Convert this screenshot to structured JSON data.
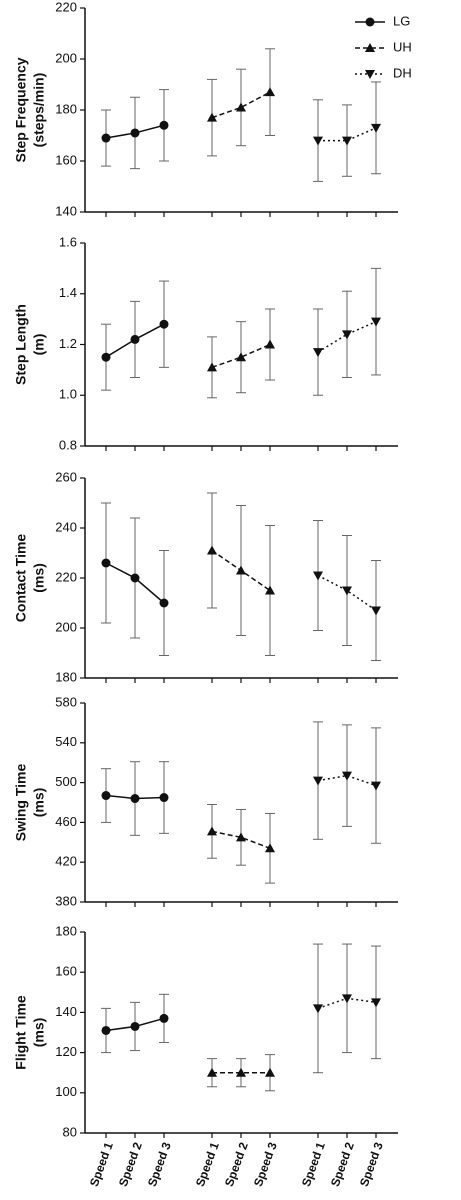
{
  "chart_data": [
    {
      "type": "line",
      "ylabel": [
        "Step Frequency",
        "(steps/min)"
      ],
      "ylim": [
        140,
        220
      ],
      "yticks": [
        140,
        160,
        180,
        200,
        220
      ],
      "legend": "upper right",
      "series": [
        {
          "name": "LG",
          "color": "#111111",
          "dash": "solid",
          "marker": "circle",
          "values": [
            169,
            171,
            174,
            null,
            null,
            null,
            null,
            null,
            null
          ],
          "errors": [
            11,
            14,
            14,
            null,
            null,
            null,
            null,
            null,
            null
          ]
        },
        {
          "name": "UH",
          "color": "#111111",
          "dash": "dashed",
          "marker": "triangle-up",
          "values": [
            null,
            null,
            null,
            177,
            181,
            187,
            null,
            null,
            null
          ],
          "errors": [
            null,
            null,
            null,
            15,
            15,
            17,
            null,
            null,
            null
          ]
        },
        {
          "name": "DH",
          "color": "#111111",
          "dash": "dotted",
          "marker": "triangle-down",
          "values": [
            null,
            null,
            null,
            null,
            null,
            null,
            168,
            168,
            173
          ],
          "errors": [
            null,
            null,
            null,
            null,
            null,
            null,
            16,
            14,
            18
          ]
        }
      ]
    },
    {
      "type": "line",
      "ylabel": [
        "Step Length",
        "(m)"
      ],
      "ylim": [
        0.8,
        1.6
      ],
      "yticks": [
        0.8,
        {
          "value": 1,
          "label": "1.0"
        },
        1.2,
        1.4,
        1.6
      ],
      "series": [
        {
          "color": "#111111",
          "dash": "solid",
          "marker": "circle",
          "values": [
            1.15,
            1.22,
            1.28,
            null,
            null,
            null,
            null,
            null,
            null
          ],
          "errors": [
            0.13,
            0.15,
            0.17,
            null,
            null,
            null,
            null,
            null,
            null
          ]
        },
        {
          "color": "#111111",
          "dash": "dashed",
          "marker": "triangle-up",
          "values": [
            null,
            null,
            null,
            1.11,
            1.15,
            1.2,
            null,
            null,
            null
          ],
          "errors": [
            null,
            null,
            null,
            0.12,
            0.14,
            0.14,
            null,
            null,
            null
          ]
        },
        {
          "color": "#111111",
          "dash": "dotted",
          "marker": "triangle-down",
          "values": [
            null,
            null,
            null,
            null,
            null,
            null,
            1.17,
            1.24,
            1.29
          ],
          "errors": [
            null,
            null,
            null,
            null,
            null,
            null,
            0.17,
            0.17,
            0.21
          ]
        }
      ]
    },
    {
      "type": "line",
      "ylabel": [
        "Contact Time",
        "(ms)"
      ],
      "ylim": [
        180,
        260
      ],
      "yticks": [
        180,
        200,
        220,
        240,
        260
      ],
      "series": [
        {
          "color": "#111111",
          "dash": "solid",
          "marker": "circle",
          "values": [
            226,
            220,
            210,
            null,
            null,
            null,
            null,
            null,
            null
          ],
          "errors": [
            24,
            24,
            21,
            null,
            null,
            null,
            null,
            null,
            null
          ]
        },
        {
          "color": "#111111",
          "dash": "dashed",
          "marker": "triangle-up",
          "values": [
            null,
            null,
            null,
            231,
            223,
            215,
            null,
            null,
            null
          ],
          "errors": [
            null,
            null,
            null,
            23,
            26,
            26,
            null,
            null,
            null
          ]
        },
        {
          "color": "#111111",
          "dash": "dotted",
          "marker": "triangle-down",
          "values": [
            null,
            null,
            null,
            null,
            null,
            null,
            221,
            215,
            207
          ],
          "errors": [
            null,
            null,
            null,
            null,
            null,
            null,
            22,
            22,
            20
          ]
        }
      ]
    },
    {
      "type": "line",
      "ylabel": [
        "Swing Time",
        "(ms)"
      ],
      "ylim": [
        380,
        580
      ],
      "yticks": [
        380,
        420,
        460,
        500,
        540,
        580
      ],
      "series": [
        {
          "color": "#111111",
          "dash": "solid",
          "marker": "circle",
          "values": [
            487,
            484,
            485,
            null,
            null,
            null,
            null,
            null,
            null
          ],
          "errors": [
            27,
            37,
            36,
            null,
            null,
            null,
            null,
            null,
            null
          ]
        },
        {
          "color": "#111111",
          "dash": "dashed",
          "marker": "triangle-up",
          "values": [
            null,
            null,
            null,
            451,
            445,
            434,
            null,
            null,
            null
          ],
          "errors": [
            null,
            null,
            null,
            27,
            28,
            35,
            null,
            null,
            null
          ]
        },
        {
          "color": "#111111",
          "dash": "dotted",
          "marker": "triangle-down",
          "values": [
            null,
            null,
            null,
            null,
            null,
            null,
            502,
            507,
            497
          ],
          "errors": [
            null,
            null,
            null,
            null,
            null,
            null,
            59,
            51,
            58
          ]
        }
      ]
    },
    {
      "type": "line",
      "ylabel": [
        "Flight Time",
        "(ms)"
      ],
      "ylim": [
        80,
        180
      ],
      "yticks": [
        80,
        100,
        120,
        140,
        160,
        180
      ],
      "categories": [
        "Speed 1",
        "Speed 2",
        "Speed 3",
        "Speed 1",
        "Speed 2",
        "Speed 3",
        "Speed 1",
        "Speed 2",
        "Speed 3"
      ],
      "series": [
        {
          "color": "#111111",
          "dash": "solid",
          "marker": "circle",
          "values": [
            131,
            133,
            137,
            null,
            null,
            null,
            null,
            null,
            null
          ],
          "errors": [
            11,
            12,
            12,
            null,
            null,
            null,
            null,
            null,
            null
          ]
        },
        {
          "color": "#111111",
          "dash": "dashed",
          "marker": "triangle-up",
          "values": [
            null,
            null,
            null,
            110,
            110,
            110,
            null,
            null,
            null
          ],
          "errors": [
            null,
            null,
            null,
            7,
            7,
            9,
            null,
            null,
            null
          ]
        },
        {
          "color": "#111111",
          "dash": "dotted",
          "marker": "triangle-down",
          "values": [
            null,
            null,
            null,
            null,
            null,
            null,
            142,
            147,
            145
          ],
          "errors": [
            null,
            null,
            null,
            null,
            null,
            null,
            32,
            27,
            28
          ]
        }
      ]
    }
  ]
}
